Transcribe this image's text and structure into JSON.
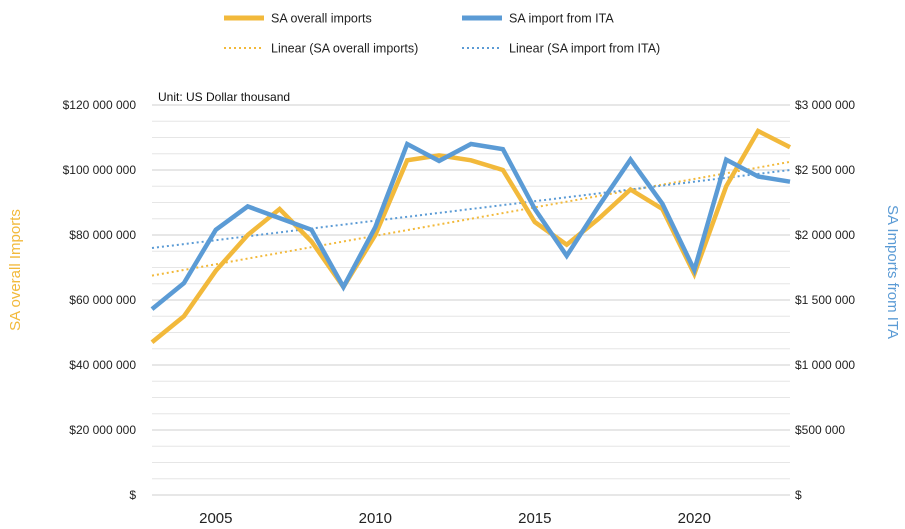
{
  "chart_data": {
    "type": "line",
    "unit_note": "Unit: US Dollar thousand",
    "x": [
      2003,
      2004,
      2005,
      2006,
      2007,
      2008,
      2009,
      2010,
      2011,
      2012,
      2013,
      2014,
      2015,
      2016,
      2017,
      2018,
      2019,
      2020,
      2021,
      2022,
      2023
    ],
    "x_ticks": [
      "2005",
      "2010",
      "2015",
      "2020"
    ],
    "y_left": {
      "label": "SA overall Imports",
      "ylim": [
        0,
        120000000
      ],
      "tick_labels": [
        "$",
        "$20 000 000",
        "$40 000 000",
        "$60 000 000",
        "$80 000 000",
        "$100 000 000",
        "$120 000 000"
      ]
    },
    "y_right": {
      "label": "SA Imports from ITA",
      "ylim": [
        0,
        3000000
      ],
      "tick_labels": [
        "$",
        "$500 000",
        "$1 000 000",
        "$1 500 000",
        "$2 000 000",
        "$2 500 000",
        "$3 000 000"
      ]
    },
    "series": [
      {
        "name": "SA overall imports",
        "axis": "left",
        "color": "#F2B93B",
        "values": [
          47000000,
          55000000,
          69000000,
          80000000,
          88000000,
          78000000,
          64000000,
          80000000,
          103000000,
          104500000,
          103000000,
          100000000,
          84000000,
          77000000,
          85000000,
          94000000,
          88000000,
          68000000,
          95000000,
          112000000,
          107000000
        ]
      },
      {
        "name": "SA import from ITA",
        "axis": "right",
        "color": "#5B9BD5",
        "values": [
          1430000,
          1630000,
          2040000,
          2220000,
          2130000,
          2040000,
          1600000,
          2060000,
          2700000,
          2570000,
          2700000,
          2660000,
          2200000,
          1840000,
          2220000,
          2580000,
          2240000,
          1730000,
          2580000,
          2450000,
          2410000
        ]
      }
    ],
    "trendlines": [
      {
        "name": "Linear (SA overall imports)",
        "color": "#F2B93B",
        "style": "dotted",
        "axis": "left",
        "x": [
          2003,
          2023
        ],
        "y": [
          67500000,
          102500000
        ]
      },
      {
        "name": "Linear (SA import from ITA)",
        "color": "#5B9BD5",
        "style": "dotted",
        "axis": "right",
        "x": [
          2003,
          2023
        ],
        "y": [
          1900000,
          2500000
        ]
      }
    ],
    "grid": true,
    "legend_position": "top-center"
  }
}
